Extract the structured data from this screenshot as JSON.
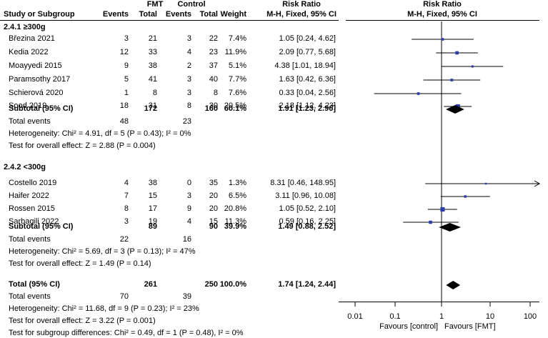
{
  "header": {
    "study_col": "Study or Subgroup",
    "fmt_group": "FMT",
    "control_group": "Control",
    "events": "Events",
    "total": "Total",
    "weight": "Weight",
    "rr_title": "Risk Ratio",
    "rr_method": "M-H, Fixed, 95% CI",
    "plot_title": "Risk Ratio",
    "plot_method": "M-H, Fixed, 95% CI"
  },
  "chart_data": {
    "type": "forest",
    "x_axis": {
      "scale": "log",
      "range": [
        0.01,
        100
      ],
      "ticks": [
        "0.01",
        "0.1",
        "1",
        "10",
        "100"
      ]
    },
    "favours_left": "Favours [control]",
    "favours_right": "Favours [FMT]",
    "subgroups": [
      {
        "label": "2.4.1 ≥300g",
        "studies": [
          {
            "name": "Březina 2021",
            "e1": "3",
            "n1": "21",
            "e2": "3",
            "n2": "22",
            "weight": "7.4%",
            "rr_text": "1.05 [0.24, 4.62]",
            "rr": 1.05,
            "lo": 0.24,
            "hi": 4.62
          },
          {
            "name": "Kedia 2022",
            "e1": "12",
            "n1": "33",
            "e2": "4",
            "n2": "23",
            "weight": "11.9%",
            "rr_text": "2.09 [0.77, 5.68]",
            "rr": 2.09,
            "lo": 0.77,
            "hi": 5.68
          },
          {
            "name": "Moayyedi 2015",
            "e1": "9",
            "n1": "38",
            "e2": "2",
            "n2": "37",
            "weight": "5.1%",
            "rr_text": "4.38 [1.01, 18.94]",
            "rr": 4.38,
            "lo": 1.01,
            "hi": 18.94
          },
          {
            "name": "Paramsothy 2017",
            "e1": "5",
            "n1": "41",
            "e2": "3",
            "n2": "40",
            "weight": "7.7%",
            "rr_text": "1.63 [0.42, 6.36]",
            "rr": 1.63,
            "lo": 0.42,
            "hi": 6.36
          },
          {
            "name": "Schierová 2020",
            "e1": "1",
            "n1": "8",
            "e2": "3",
            "n2": "8",
            "weight": "7.6%",
            "rr_text": "0.33 [0.04, 2.56]",
            "rr": 0.33,
            "lo": 0.04,
            "hi": 2.56
          },
          {
            "name": "Sood 2019",
            "e1": "18",
            "n1": "31",
            "e2": "8",
            "n2": "30",
            "weight": "20.5%",
            "rr_text": "2.18 [1.12, 4.23]",
            "rr": 2.18,
            "lo": 1.12,
            "hi": 4.23
          }
        ],
        "subtotal": {
          "label": "Subtotal (95% CI)",
          "n1": "172",
          "n2": "160",
          "weight": "60.1%",
          "rr_text": "1.91 [1.23, 2.96]",
          "rr": 1.91,
          "lo": 1.23,
          "hi": 2.96
        },
        "total_events": {
          "label": "Total events",
          "e1": "48",
          "e2": "23"
        },
        "heterogeneity": "Heterogeneity: Chi² = 4.91, df = 5 (P = 0.43); I² = 0%",
        "overall": "Test for overall effect: Z = 2.88 (P = 0.004)"
      },
      {
        "label": "2.4.2 <300g",
        "studies": [
          {
            "name": "Costello 2019",
            "e1": "4",
            "n1": "38",
            "e2": "0",
            "n2": "35",
            "weight": "1.3%",
            "rr_text": "8.31 [0.46, 148.95]",
            "rr": 8.31,
            "lo": 0.46,
            "hi": 148.95
          },
          {
            "name": "Haifer 2022",
            "e1": "7",
            "n1": "15",
            "e2": "3",
            "n2": "20",
            "weight": "6.5%",
            "rr_text": "3.11 [0.96, 10.08]",
            "rr": 3.11,
            "lo": 0.96,
            "hi": 10.08
          },
          {
            "name": "Rossen 2015",
            "e1": "8",
            "n1": "17",
            "e2": "9",
            "n2": "20",
            "weight": "20.8%",
            "rr_text": "1.05 [0.52, 2.10]",
            "rr": 1.05,
            "lo": 0.52,
            "hi": 2.1
          },
          {
            "name": "Sarbagili 2022",
            "e1": "3",
            "n1": "19",
            "e2": "4",
            "n2": "15",
            "weight": "11.3%",
            "rr_text": "0.59 [0.16, 2.25]",
            "rr": 0.59,
            "lo": 0.16,
            "hi": 2.25
          }
        ],
        "subtotal": {
          "label": "Subtotal (95% CI)",
          "n1": "89",
          "n2": "90",
          "weight": "39.9%",
          "rr_text": "1.49 [0.88, 2.52]",
          "rr": 1.49,
          "lo": 0.88,
          "hi": 2.52
        },
        "total_events": {
          "label": "Total events",
          "e1": "22",
          "e2": "16"
        },
        "heterogeneity": "Heterogeneity: Chi² = 5.69, df = 3 (P = 0.13); I² = 47%",
        "overall": "Test for overall effect: Z = 1.49 (P = 0.14)"
      }
    ],
    "total": {
      "label": "Total (95% CI)",
      "n1": "261",
      "n2": "250",
      "weight": "100.0%",
      "rr_text": "1.74 [1.24, 2.44]",
      "rr": 1.74,
      "lo": 1.24,
      "hi": 2.44
    },
    "total_events": {
      "label": "Total events",
      "e1": "70",
      "e2": "39"
    },
    "heterogeneity": "Heterogeneity: Chi² = 11.68, df = 9 (P = 0.23); I² = 23%",
    "overall": "Test for overall effect: Z = 3.22 (P = 0.001)",
    "subgroup_test": "Test for subgroup differences: Chi² = 0.49, df = 1 (P = 0.48), I² = 0%"
  }
}
